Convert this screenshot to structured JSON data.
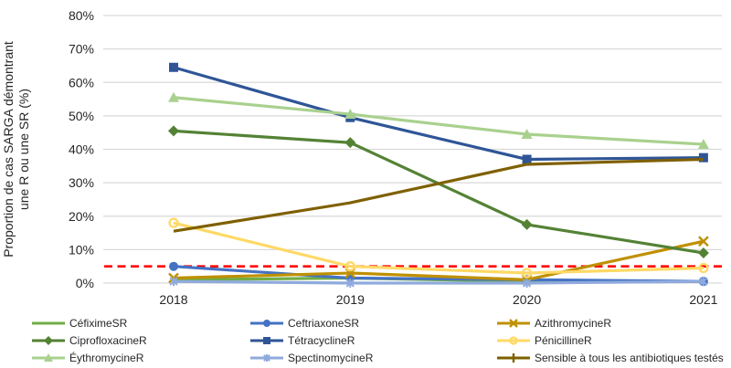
{
  "chart_data": {
    "type": "line",
    "title": "",
    "ylabel_line1": "Proportion de cas SARGA démontrant",
    "ylabel_line2": "une R ou une SR (%)",
    "xlabel": "",
    "categories": [
      "2018",
      "2019",
      "2020",
      "2021"
    ],
    "y_axis": {
      "min": 0,
      "max": 80,
      "step": 10,
      "tick_suffix": "%"
    },
    "grid": true,
    "legend_position": "bottom",
    "threshold_line": {
      "value": 5,
      "color": "#FF0000",
      "style": "dashed"
    },
    "colors": {
      "gridline": "#D9D9D9",
      "text": "#262626"
    },
    "series": [
      {
        "name": "CéfiximeSR",
        "color": "#70AD47",
        "marker": "none",
        "values": [
          1,
          1.5,
          0.5,
          0.5
        ]
      },
      {
        "name": "CeftriaxoneSR",
        "color": "#4472C4",
        "marker": "circle",
        "values": [
          5,
          1.5,
          1,
          0.5
        ]
      },
      {
        "name": "AzithromycineR",
        "color": "#BF9000",
        "marker": "x",
        "values": [
          1.5,
          3,
          1,
          12.5
        ]
      },
      {
        "name": "CiprofloxacineR",
        "color": "#548235",
        "marker": "diamond",
        "values": [
          45.5,
          42,
          17.5,
          9
        ]
      },
      {
        "name": "TétracyclineR",
        "color": "#2F5597",
        "marker": "square",
        "values": [
          64.5,
          49.5,
          37,
          37.5
        ]
      },
      {
        "name": "PénicillineR",
        "color": "#FFD966",
        "marker": "open-circle",
        "values": [
          18,
          5,
          3,
          4.5
        ]
      },
      {
        "name": "ÉythromycineR",
        "color": "#A9D18E",
        "marker": "triangle",
        "values": [
          55.5,
          50.5,
          44.5,
          41.5
        ]
      },
      {
        "name": "SpectinomycineR",
        "color": "#8FAADC",
        "marker": "asterisk",
        "values": [
          0.5,
          0,
          0,
          0.5
        ]
      },
      {
        "name": "Sensible à tous les antibiotiques testés",
        "color": "#7F6000",
        "marker": "plus",
        "values": [
          15.5,
          24,
          35.5,
          37
        ]
      }
    ]
  }
}
